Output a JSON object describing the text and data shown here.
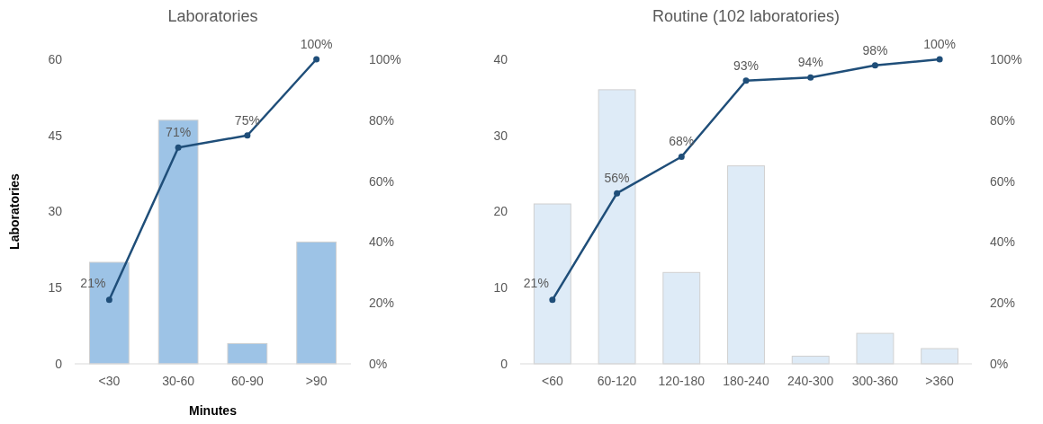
{
  "chart_data": [
    {
      "type": "bar",
      "title": "Laboratories",
      "xlabel": "Minutes",
      "ylabel": "Laboratories",
      "categories": [
        "<30",
        "30-60",
        "60-90",
        ">90"
      ],
      "series": [
        {
          "color": "#9dc3e6",
          "values": [
            20,
            48,
            4,
            24
          ]
        },
        {
          "type": "line",
          "axis": "y2",
          "color": "#1f4e79",
          "values": [
            21,
            71,
            75,
            100
          ],
          "value_labels": [
            "21%",
            "71%",
            "75%",
            "100%"
          ]
        }
      ],
      "ylim": [
        0,
        60
      ],
      "yticks": [
        0,
        15,
        30,
        45,
        60
      ],
      "y2lim": [
        0,
        100
      ],
      "y2ticks": [
        {
          "value": 0,
          "label": "0%"
        },
        {
          "value": 20,
          "label": "20%"
        },
        {
          "value": 40,
          "label": "40%"
        },
        {
          "value": 60,
          "label": "60%"
        },
        {
          "value": 80,
          "label": "80%"
        },
        {
          "value": 100,
          "label": "100%"
        }
      ],
      "grid": false,
      "marker": "circle",
      "line_style": "solid"
    },
    {
      "type": "bar",
      "title": "Routine (102 laboratories)",
      "categories": [
        "<60",
        "60-120",
        "120-180",
        "180-240",
        "240-300",
        "300-360",
        ">360"
      ],
      "series": [
        {
          "color": "#deebf7",
          "values": [
            21,
            36,
            12,
            26,
            1,
            4,
            2
          ]
        },
        {
          "type": "line",
          "axis": "y2",
          "color": "#1f4e79",
          "values": [
            21,
            56,
            68,
            93,
            94,
            98,
            100
          ],
          "value_labels": [
            "21%",
            "56%",
            "68%",
            "93%",
            "94%",
            "98%",
            "100%"
          ]
        }
      ],
      "ylim": [
        0,
        40
      ],
      "yticks": [
        0,
        10,
        20,
        30,
        40
      ],
      "y2lim": [
        0,
        100
      ],
      "y2ticks": [
        {
          "value": 0,
          "label": "0%"
        },
        {
          "value": 20,
          "label": "20%"
        },
        {
          "value": 40,
          "label": "40%"
        },
        {
          "value": 60,
          "label": "60%"
        },
        {
          "value": 80,
          "label": "80%"
        },
        {
          "value": 100,
          "label": "100%"
        }
      ],
      "grid": false,
      "marker": "circle",
      "line_style": "solid"
    }
  ]
}
